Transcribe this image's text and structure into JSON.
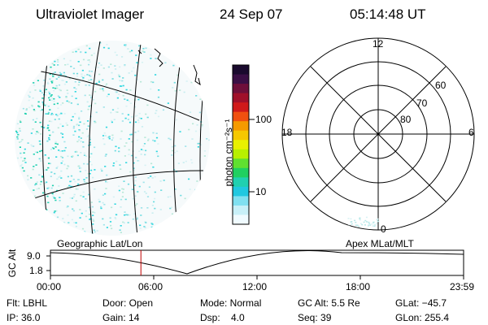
{
  "header": {
    "instrument": "Ultraviolet Imager",
    "date": "24 Sep 07",
    "time": "05:14:48 UT"
  },
  "colorbar": {
    "unit": "photon cm⁻²s⁻¹",
    "ticks": [
      "100",
      "10"
    ],
    "colors": [
      "#1a0a2e",
      "#3a0f45",
      "#6e0f3a",
      "#a0102a",
      "#d01a1a",
      "#f05010",
      "#f59a00",
      "#f5c800",
      "#e8f000",
      "#b8f000",
      "#60e030",
      "#20d060",
      "#20d0b0",
      "#20c8e0",
      "#80e0f0",
      "#c8f0f8",
      "#f0fbff"
    ]
  },
  "polar": {
    "labels": {
      "top": "12",
      "bottom": "0",
      "left": "18",
      "right": "6",
      "lat60": "60",
      "lat70": "70",
      "lat80": "80"
    }
  },
  "timeline": {
    "left_label": "Geographic Lat/Lon",
    "right_label": "Apex MLat/MLT",
    "y_axis_label": "GC Alt",
    "y_ticks": [
      "9.0",
      "1.8"
    ],
    "x_ticks": [
      "00:00",
      "06:00",
      "12:00",
      "18:00",
      "23:59"
    ],
    "current_time_fraction": 0.219
  },
  "info": {
    "filter": "Flt: LBHL",
    "door": "Door: Open",
    "mode": "Mode: Normal",
    "gc_alt": "GC Alt: 5.5 Re",
    "glat": "GLat: −45.7",
    "ip": "IP: 36.0",
    "gain": "Gain: 14",
    "dsp": "Dsp:    4.0",
    "seq": "Seq: 39",
    "glon": "GLon: 255.4"
  }
}
